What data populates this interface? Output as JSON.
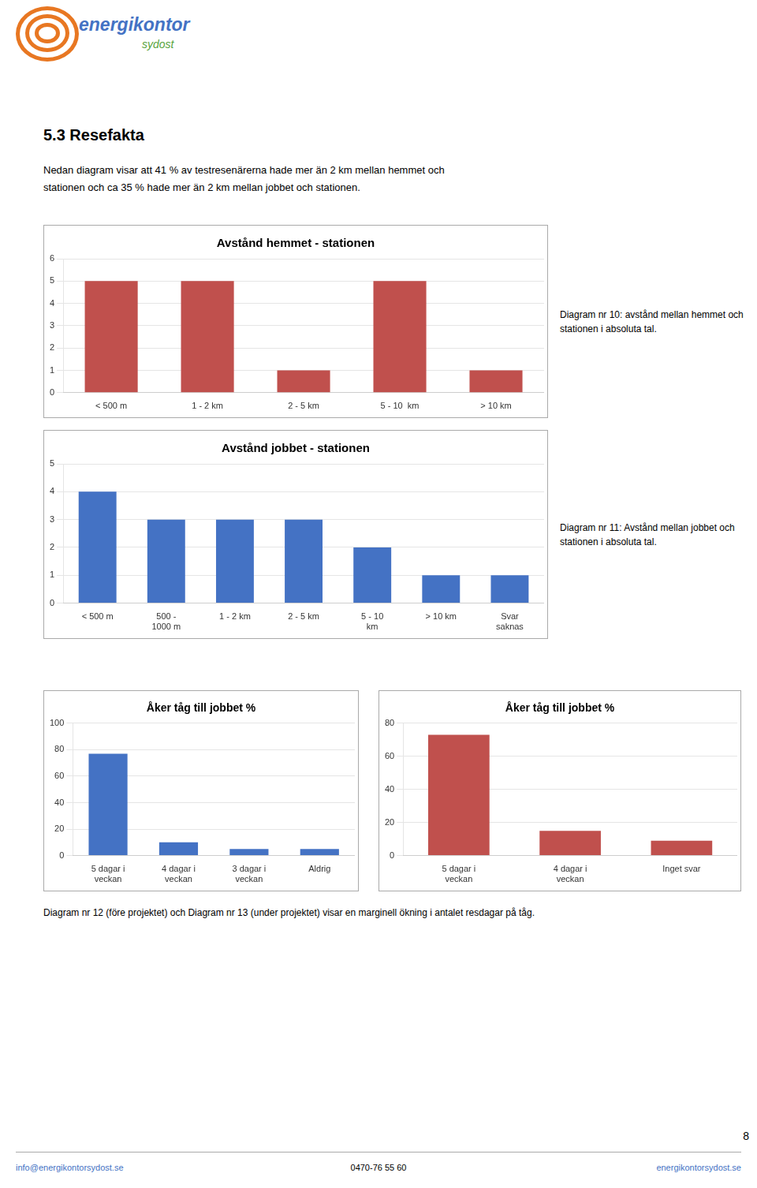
{
  "logo": [
    "energikontor",
    "sydost"
  ],
  "title": "5.3 Resefakta",
  "text": "Nedan diagram visar att 41 % av testresenärerna hade mer än 2 km mellan hemmet och\nstationen och ca 35 % hade mer än 2 km mellan jobbet och stationen.",
  "chart_data": [
    {
      "type": "bar",
      "title": "Avstånd hemmet - stationen",
      "categories": [
        "< 500 m",
        "1 - 2 km",
        "2 - 5 km",
        "5 - 10  km",
        "> 10 km"
      ],
      "values": [
        5,
        5,
        1,
        5,
        1
      ],
      "color": "#C0504D",
      "ylim": [
        0,
        6
      ],
      "yticks": [
        0,
        1,
        2,
        3,
        4,
        5,
        6
      ],
      "grid": true,
      "caption": "Diagram nr 10: avstånd mellan hemmet och\nstationen i absoluta tal."
    },
    {
      "type": "bar",
      "title": "Avstånd jobbet - stationen",
      "categories": [
        "< 500 m",
        "500 -\n1000 m",
        "1 - 2 km",
        "2 - 5 km",
        "5 - 10\nkm",
        "> 10 km",
        "Svar\nsaknas"
      ],
      "values": [
        4,
        3,
        3,
        3,
        2,
        1,
        1
      ],
      "color": "#4472C4",
      "ylim": [
        0,
        5
      ],
      "yticks": [
        0,
        1,
        2,
        3,
        4,
        5
      ],
      "grid": true,
      "caption": "Diagram nr 11: Avstånd mellan jobbet och\nstationen i absoluta tal."
    },
    {
      "type": "bar",
      "title": "Åker tåg till jobbet %",
      "categories": [
        "5 dagar i\nveckan",
        "4 dagar i\nveckan",
        "3 dagar i\nveckan",
        "Aldrig"
      ],
      "values": [
        77,
        10,
        5,
        5
      ],
      "color": "#4472C4",
      "ylim": [
        0,
        100
      ],
      "yticks": [
        0,
        20,
        40,
        60,
        80,
        100
      ],
      "grid": true
    },
    {
      "type": "bar",
      "title": "Åker tåg till jobbet %",
      "categories": [
        "5 dagar i\nveckan",
        "4 dagar i\nveckan",
        "Inget svar"
      ],
      "values": [
        73,
        15,
        9
      ],
      "color": "#C0504D",
      "ylim": [
        0,
        80
      ],
      "yticks": [
        0,
        20,
        40,
        60,
        80
      ],
      "grid": true
    }
  ],
  "note": "Diagram nr 12 (före projektet) och Diagram nr 13 (under projektet) visar en marginell ökning i antalet resdagar på tåg.",
  "footer": [
    "info@energikontorsydost.se",
    "0470-76 55 60",
    "energikontorsydost.se"
  ],
  "page_number": "8"
}
